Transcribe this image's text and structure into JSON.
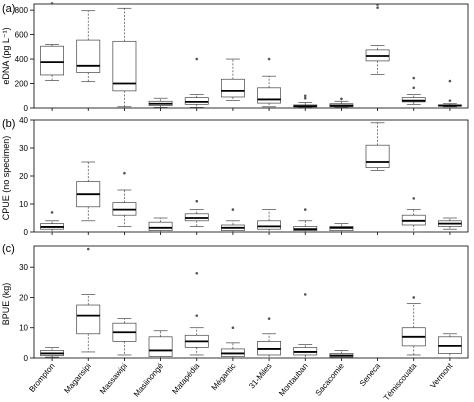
{
  "chart_data": [
    {
      "type": "boxplot",
      "panel_label": "(a)",
      "ylabel": "eDNA (pg L⁻¹)",
      "ylim": [
        0,
        850
      ],
      "yticks": [
        0,
        200,
        400,
        600,
        800
      ],
      "categories": [
        "Brompton",
        "Magansipi",
        "Massawipi",
        "Masiinongé",
        "Matapédia",
        "Mégantic",
        "31-Miles",
        "Montauban",
        "Sacacomie",
        "Seneca",
        "Témiscouata",
        "Vermont"
      ],
      "boxes": [
        {
          "min": 225,
          "q1": 270,
          "median": 375,
          "q3": 505,
          "max": 520,
          "outliers": [
            855
          ]
        },
        {
          "min": 215,
          "q1": 290,
          "median": 345,
          "q3": 555,
          "max": 795,
          "outliers": []
        },
        {
          "min": 10,
          "q1": 140,
          "median": 200,
          "q3": 545,
          "max": 815,
          "outliers": []
        },
        {
          "min": 5,
          "q1": 20,
          "median": 35,
          "q3": 55,
          "max": 80,
          "outliers": []
        },
        {
          "min": 5,
          "q1": 30,
          "median": 50,
          "q3": 85,
          "max": 110,
          "outliers": [
            400
          ]
        },
        {
          "min": 60,
          "q1": 90,
          "median": 140,
          "q3": 235,
          "max": 400,
          "outliers": []
        },
        {
          "min": 10,
          "q1": 40,
          "median": 70,
          "q3": 165,
          "max": 260,
          "outliers": [
            400
          ]
        },
        {
          "min": 5,
          "q1": 10,
          "median": 15,
          "q3": 25,
          "max": 45,
          "outliers": [
            80,
            100
          ]
        },
        {
          "min": 5,
          "q1": 10,
          "median": 20,
          "q3": 35,
          "max": 55,
          "outliers": [
            75
          ]
        },
        {
          "min": 275,
          "q1": 385,
          "median": 425,
          "q3": 475,
          "max": 510,
          "outliers": [
            820,
            845
          ]
        },
        {
          "min": 30,
          "q1": 50,
          "median": 60,
          "q3": 85,
          "max": 110,
          "outliers": [
            165,
            245
          ]
        },
        {
          "min": 10,
          "q1": 15,
          "median": 20,
          "q3": 25,
          "max": 35,
          "outliers": [
            60,
            220
          ]
        }
      ]
    },
    {
      "type": "boxplot",
      "panel_label": "(b)",
      "ylabel": "CPUE (no specimen)",
      "ylim": [
        0,
        40
      ],
      "yticks": [
        0,
        10,
        20,
        30,
        40
      ],
      "categories": [
        "Brompton",
        "Magansipi",
        "Massawipi",
        "Masiinongé",
        "Matapédia",
        "Mégantic",
        "31-Miles",
        "Montauban",
        "Sacacomie",
        "Seneca",
        "Témiscouata",
        "Vermont"
      ],
      "boxes": [
        {
          "min": 0,
          "q1": 1,
          "median": 1.8,
          "q3": 3,
          "max": 4,
          "outliers": [
            7
          ]
        },
        {
          "min": 4,
          "q1": 9,
          "median": 13.5,
          "q3": 18,
          "max": 25,
          "outliers": []
        },
        {
          "min": 2,
          "q1": 6,
          "median": 8,
          "q3": 10.5,
          "max": 15,
          "outliers": [
            21
          ]
        },
        {
          "min": 0,
          "q1": 0.5,
          "median": 1.5,
          "q3": 3.5,
          "max": 5,
          "outliers": []
        },
        {
          "min": 2,
          "q1": 4,
          "median": 5,
          "q3": 6.5,
          "max": 8,
          "outliers": [
            11
          ]
        },
        {
          "min": 0,
          "q1": 0.5,
          "median": 1.5,
          "q3": 2.5,
          "max": 4,
          "outliers": [
            8
          ]
        },
        {
          "min": 0,
          "q1": 1,
          "median": 2,
          "q3": 4,
          "max": 8,
          "outliers": []
        },
        {
          "min": 0,
          "q1": 0.5,
          "median": 1,
          "q3": 2,
          "max": 4,
          "outliers": [
            8
          ]
        },
        {
          "min": 0,
          "q1": 0.5,
          "median": 1.5,
          "q3": 2,
          "max": 3,
          "outliers": []
        },
        {
          "min": 22,
          "q1": 23,
          "median": 25,
          "q3": 31,
          "max": 39,
          "outliers": []
        },
        {
          "min": 0,
          "q1": 2.5,
          "median": 4,
          "q3": 6,
          "max": 8,
          "outliers": [
            12
          ]
        },
        {
          "min": 1,
          "q1": 2,
          "median": 3,
          "q3": 4,
          "max": 5,
          "outliers": []
        }
      ]
    },
    {
      "type": "boxplot",
      "panel_label": "(c)",
      "ylabel": "BPUE (kg)",
      "ylim": [
        0,
        37
      ],
      "yticks": [
        0,
        10,
        20,
        30
      ],
      "categories": [
        "Brompton",
        "Magansipi",
        "Massawipi",
        "Masiinongé",
        "Matapédia",
        "Mégantic",
        "31-Miles",
        "Montauban",
        "Sacacomie",
        "Seneca",
        "Témiscouata",
        "Vermont"
      ],
      "boxes": [
        {
          "min": 0.3,
          "q1": 0.8,
          "median": 1.5,
          "q3": 2.5,
          "max": 3.5,
          "outliers": []
        },
        {
          "min": 2,
          "q1": 8,
          "median": 14,
          "q3": 17.5,
          "max": 21,
          "outliers": [
            36
          ]
        },
        {
          "min": 1,
          "q1": 5.5,
          "median": 8.5,
          "q3": 11.5,
          "max": 13,
          "outliers": []
        },
        {
          "min": 0,
          "q1": 0.5,
          "median": 2.5,
          "q3": 7,
          "max": 9,
          "outliers": []
        },
        {
          "min": 1,
          "q1": 3.5,
          "median": 5.5,
          "q3": 7.5,
          "max": 10,
          "outliers": [
            14,
            28
          ]
        },
        {
          "min": 0,
          "q1": 0.5,
          "median": 1.5,
          "q3": 3,
          "max": 5,
          "outliers": [
            10
          ]
        },
        {
          "min": 0,
          "q1": 1,
          "median": 3,
          "q3": 5.5,
          "max": 8,
          "outliers": [
            13
          ]
        },
        {
          "min": 0,
          "q1": 1,
          "median": 2,
          "q3": 3.5,
          "max": 4.5,
          "outliers": [
            21
          ]
        },
        {
          "min": 0,
          "q1": 0.3,
          "median": 0.8,
          "q3": 1.5,
          "max": 2.5,
          "outliers": []
        },
        null,
        {
          "min": 1,
          "q1": 4,
          "median": 7,
          "q3": 10,
          "max": 18,
          "outliers": [
            20
          ]
        },
        {
          "min": 0,
          "q1": 1.5,
          "median": 4,
          "q3": 7,
          "max": 8,
          "outliers": []
        }
      ]
    }
  ]
}
